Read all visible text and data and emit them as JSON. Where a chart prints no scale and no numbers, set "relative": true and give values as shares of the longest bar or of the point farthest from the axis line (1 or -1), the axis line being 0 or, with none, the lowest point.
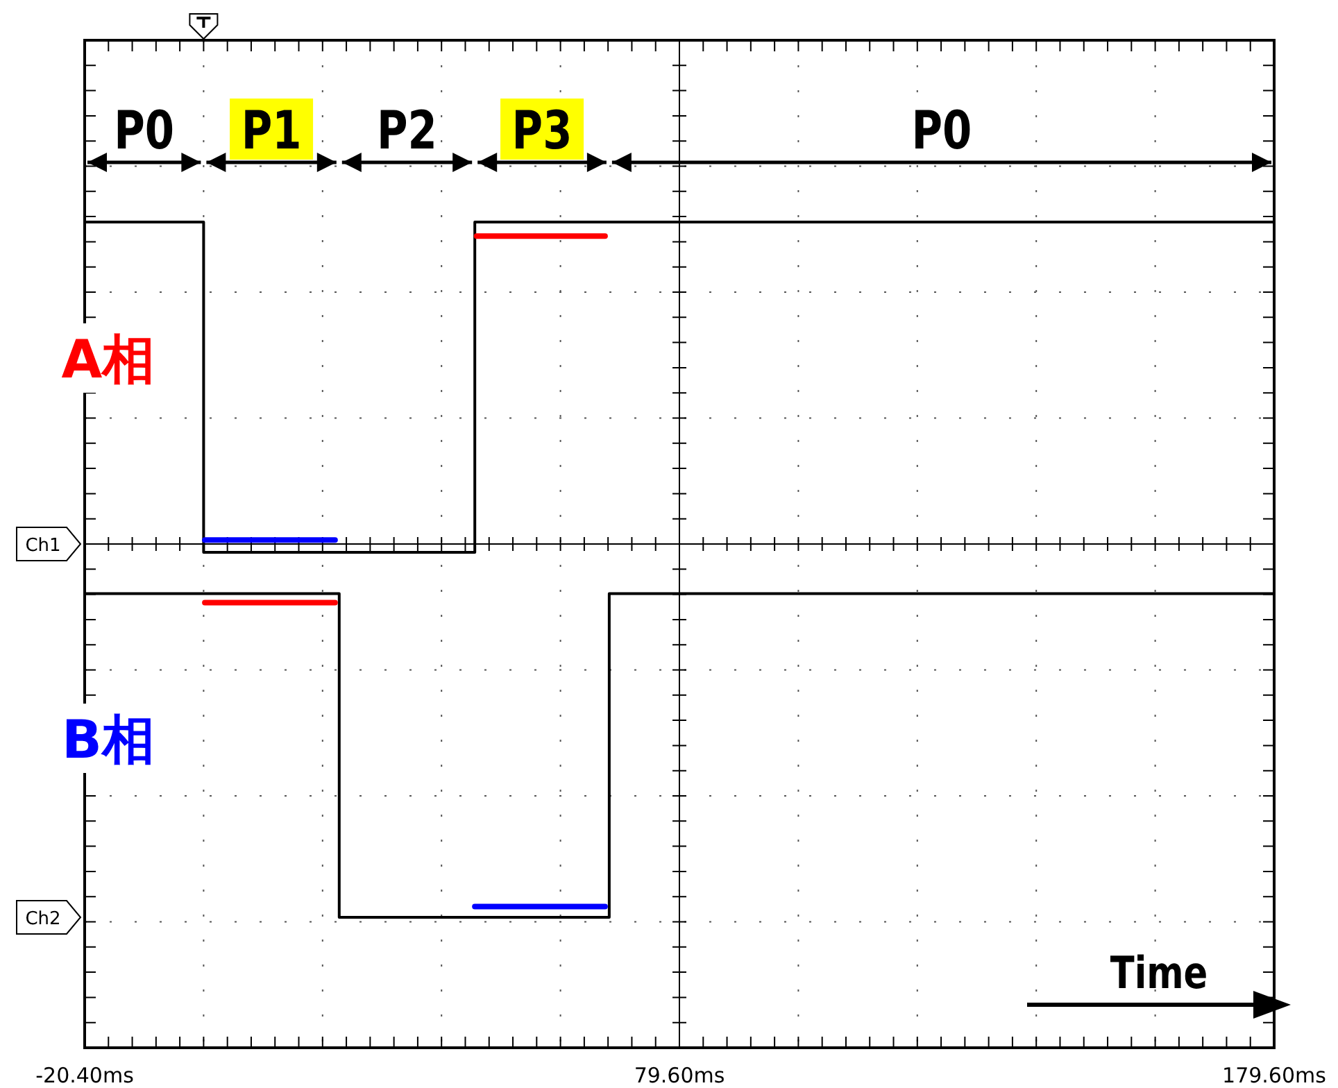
{
  "chart_data": {
    "type": "line",
    "relative": true,
    "grid": true,
    "line_style": "solid",
    "ref_lines": [
      {
        "axis": "x",
        "value": 79.6
      },
      {
        "axis": "y",
        "value": 0.61
      }
    ],
    "xlim": [
      -20.4,
      179.6
    ],
    "xticks": [
      {
        "value": -20.4,
        "label": "-20.40ms"
      },
      {
        "value": -0.4,
        "label": null
      },
      {
        "value": 19.6,
        "label": null
      },
      {
        "value": 39.6,
        "label": null
      },
      {
        "value": 59.6,
        "label": null
      },
      {
        "value": 79.6,
        "label": "79.60ms"
      },
      {
        "value": 99.6,
        "label": null
      },
      {
        "value": 119.6,
        "label": null
      },
      {
        "value": 139.6,
        "label": null
      },
      {
        "value": 159.6,
        "label": null
      },
      {
        "value": 179.6,
        "label": "179.60ms"
      }
    ],
    "series": [
      {
        "color": "#000000",
        "x": [
          -20.4,
          -0.4,
          -0.4,
          45.2,
          45.2,
          179.6
        ],
        "values": [
          1,
          1,
          0.6,
          0.6,
          1,
          1
        ]
      },
      {
        "color": "#000000",
        "x": [
          -20.4,
          22.4,
          22.4,
          67.8,
          67.8,
          179.6
        ],
        "values": [
          0.55,
          0.55,
          0.158,
          0.158,
          0.55,
          0.55
        ]
      },
      {
        "color": "#ff0000",
        "x": [
          45.5,
          67.1
        ],
        "values": [
          0.983,
          0.983
        ]
      },
      {
        "color": "#0000ff",
        "x": [
          -0.2,
          21.7
        ],
        "values": [
          0.615,
          0.615
        ]
      },
      {
        "color": "#ff0000",
        "x": [
          -0.2,
          21.7
        ],
        "values": [
          0.539,
          0.539
        ]
      },
      {
        "color": "#0000ff",
        "x": [
          45.2,
          67.1
        ],
        "values": [
          0.171,
          0.171
        ]
      }
    ],
    "annotations": [
      "P0",
      "P1",
      "P2",
      "P3",
      "P0",
      "A相",
      "B相",
      "Ch1",
      "Ch2",
      "Time"
    ]
  }
}
